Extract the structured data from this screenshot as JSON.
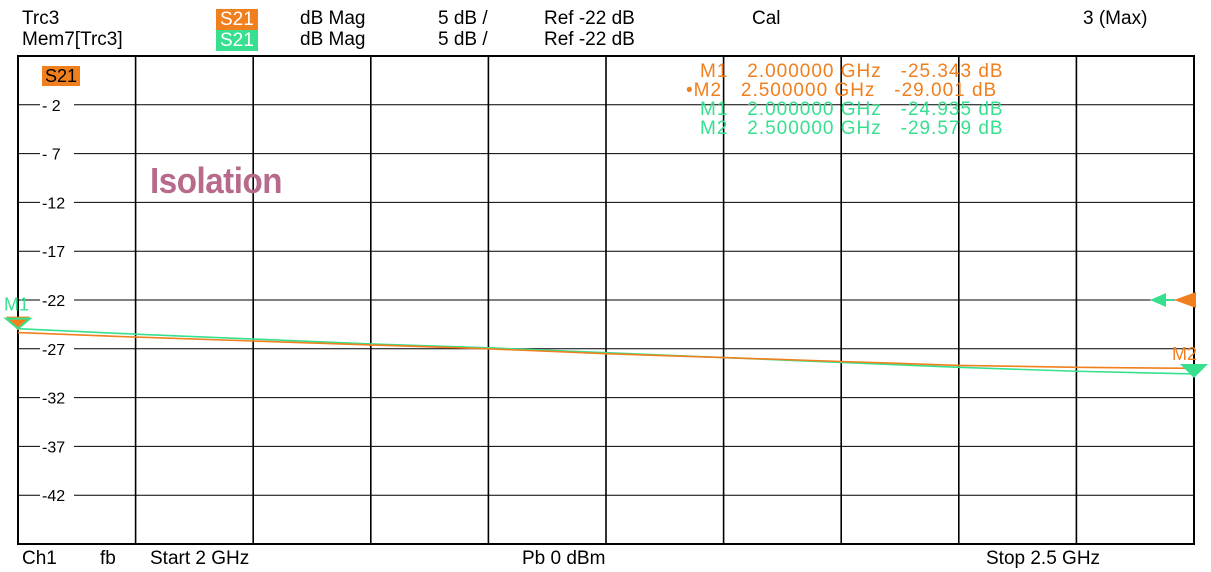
{
  "header": {
    "trace1": {
      "name": "Trc3",
      "param": "S21",
      "format": "dB Mag",
      "scale": "5 dB /",
      "ref": "Ref -22 dB",
      "cal": "Cal",
      "param_color": "#f07f1e"
    },
    "trace2": {
      "name": "Mem7[Trc3]",
      "param": "S21",
      "format": "dB Mag",
      "scale": "5 dB /",
      "ref": "Ref -22 dB",
      "param_color": "#37e08e"
    },
    "window": "3 (Max)"
  },
  "footer": {
    "channel": "Ch1",
    "fb": "fb",
    "start": "Start  2 GHz",
    "power": "Pb    0 dBm",
    "stop": "Stop  2.5 GHz"
  },
  "annotation": "Isolation",
  "trace_tag": "S21",
  "markers": {
    "trace1": [
      {
        "label": "M1",
        "freq": "2.000000 GHz",
        "value": "-25.343 dB"
      },
      {
        "label": "•M2",
        "freq": "2.500000 GHz",
        "value": "-29.001 dB"
      }
    ],
    "trace2": [
      {
        "label": "M1",
        "freq": "2.000000 GHz",
        "value": "-24.935 dB"
      },
      {
        "label": "M2",
        "freq": "2.500000 GHz",
        "value": "-29.579 dB"
      }
    ],
    "on_plot": {
      "m1": "M1",
      "m2": "M2"
    }
  },
  "chart_data": {
    "type": "line",
    "x_unit": "GHz",
    "ylabel": "dB",
    "xlim": [
      2.0,
      2.5
    ],
    "ylim": [
      -47,
      3
    ],
    "ref_level": -22,
    "yticks": [
      -2,
      -7,
      -12,
      -17,
      -22,
      -27,
      -32,
      -37,
      -42
    ],
    "ytick_labels": [
      "- 2",
      "- 7",
      "-12",
      "-17",
      "-22",
      "-27",
      "-32",
      "-37",
      "-42"
    ],
    "grid": true,
    "series": [
      {
        "name": "S21",
        "color": "#f07f1e",
        "x": [
          2.0,
          2.05,
          2.1,
          2.15,
          2.2,
          2.25,
          2.3,
          2.35,
          2.4,
          2.45,
          2.5
        ],
        "y": [
          -25.34,
          -25.8,
          -26.2,
          -26.6,
          -27.0,
          -27.5,
          -27.9,
          -28.3,
          -28.7,
          -28.9,
          -29.0
        ]
      },
      {
        "name": "S21",
        "color": "#37e08e",
        "x": [
          2.0,
          2.05,
          2.1,
          2.15,
          2.2,
          2.25,
          2.3,
          2.35,
          2.4,
          2.45,
          2.5
        ],
        "y": [
          -24.94,
          -25.5,
          -26.0,
          -26.5,
          -26.9,
          -27.4,
          -27.9,
          -28.4,
          -28.9,
          -29.3,
          -29.58
        ]
      }
    ]
  }
}
